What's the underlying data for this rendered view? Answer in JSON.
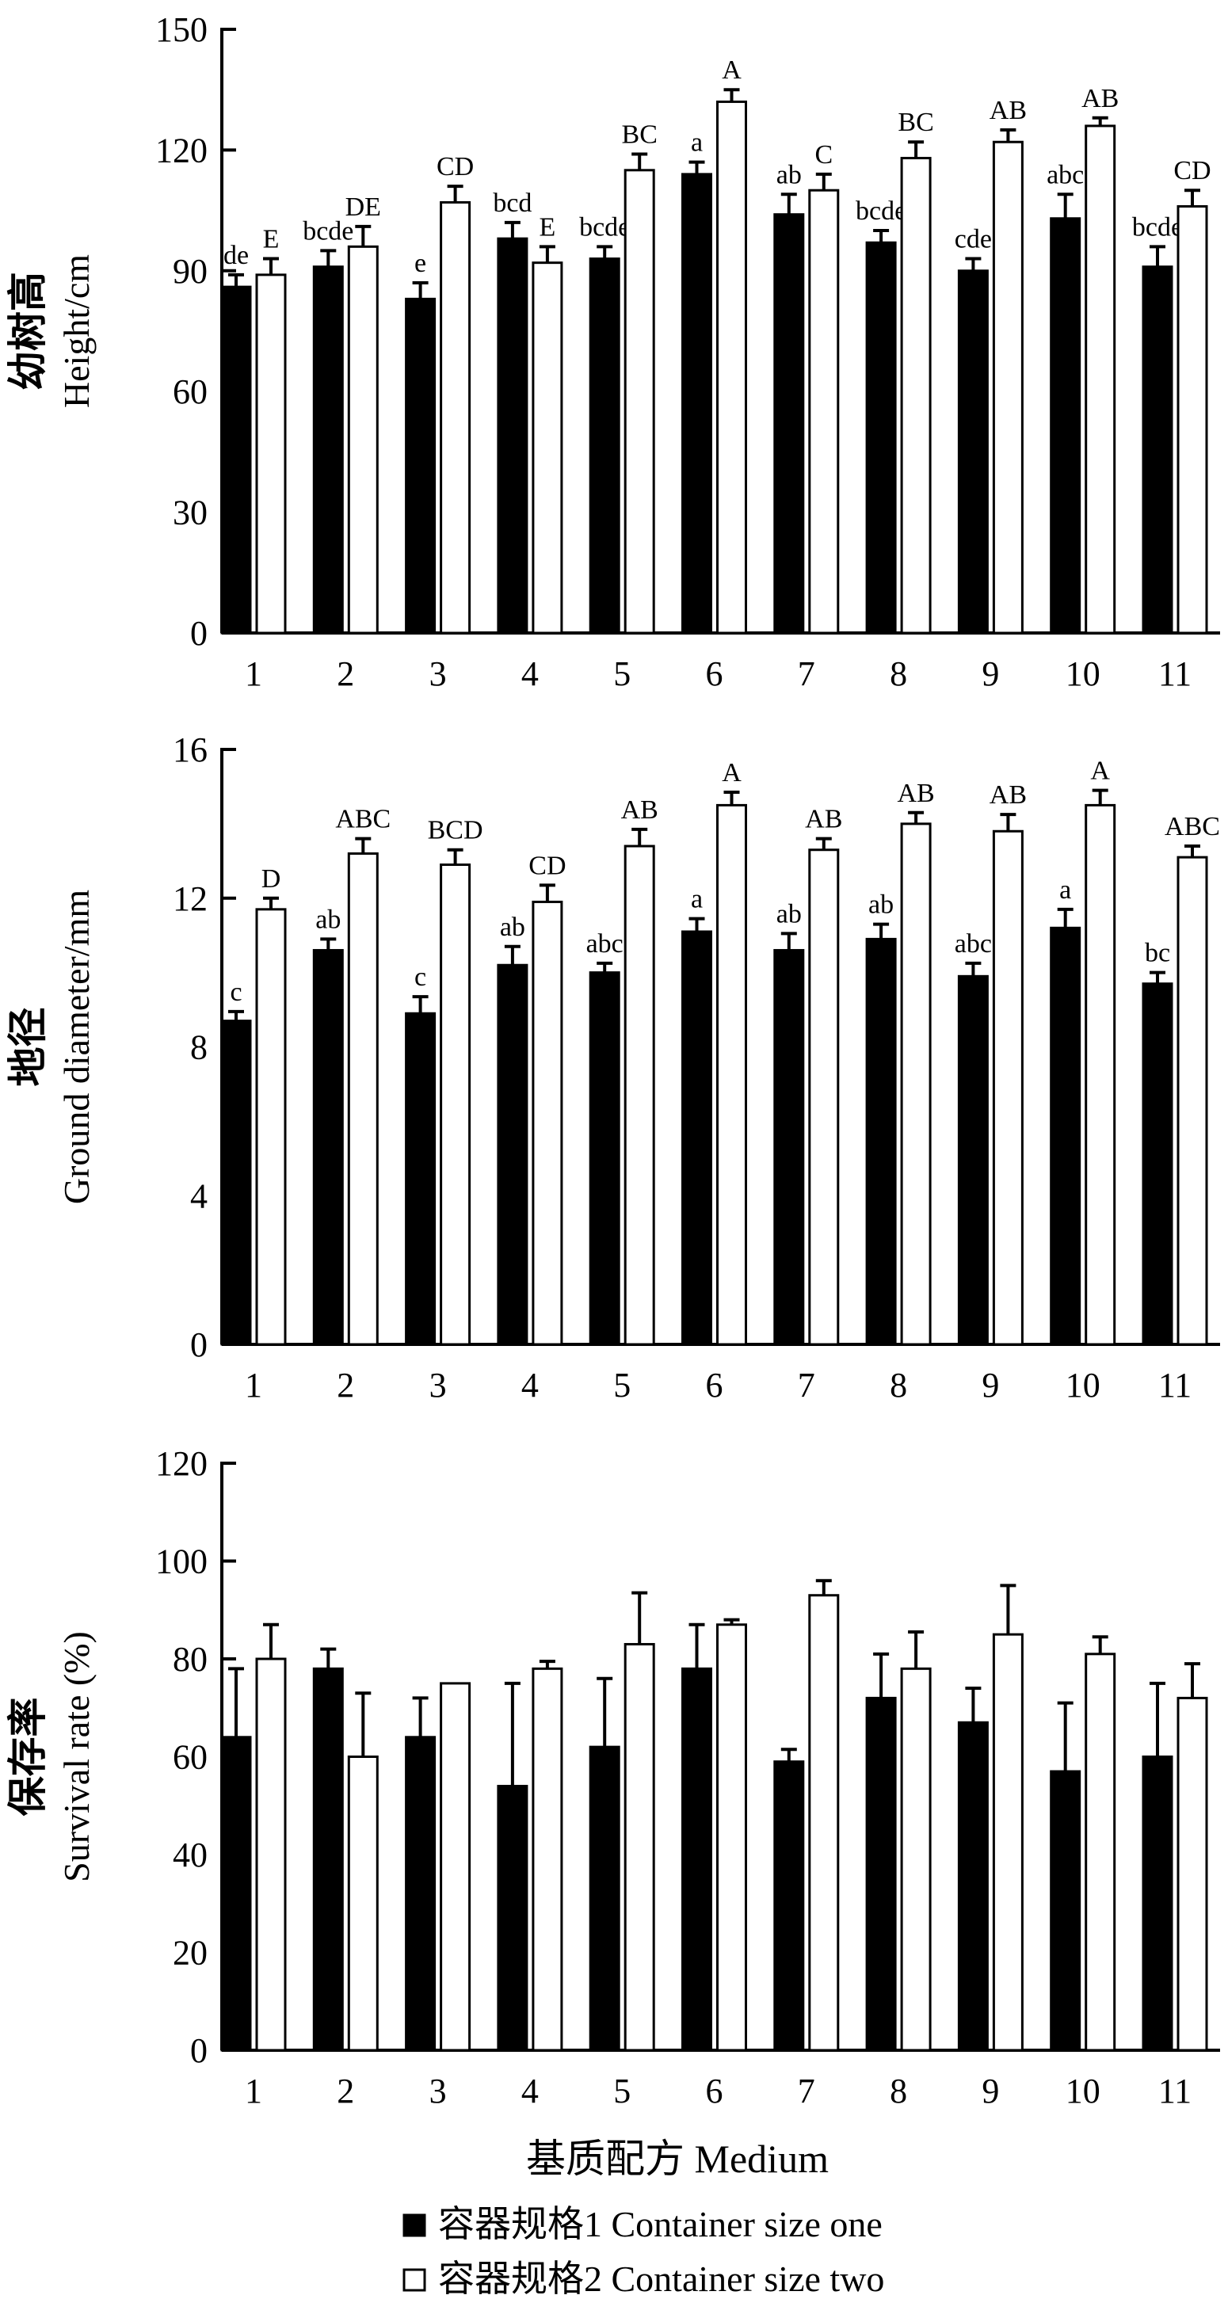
{
  "chart_data": [
    {
      "type": "bar",
      "ylabel_cn": "幼树高",
      "ylabel_en": "Height/cm",
      "ylim": [
        0,
        150
      ],
      "yticks": [
        0,
        30,
        60,
        90,
        120,
        150
      ],
      "categories": [
        "1",
        "2",
        "3",
        "4",
        "5",
        "6",
        "7",
        "8",
        "9",
        "10",
        "11"
      ],
      "series": [
        {
          "name": "容器规格1 Container size one",
          "fill": "#000000",
          "values": [
            86,
            91,
            83,
            98,
            93,
            114,
            104,
            97,
            90,
            103,
            91
          ],
          "errors": [
            3,
            4,
            4,
            4,
            3,
            3,
            5,
            3,
            3,
            6,
            5
          ],
          "letters": [
            "de",
            "bcde",
            "e",
            "bcd",
            "bcde",
            "a",
            "ab",
            "bcde",
            "cde",
            "abc",
            "bcde"
          ]
        },
        {
          "name": "容器规格2 Container size two",
          "fill": "#ffffff",
          "values": [
            89,
            96,
            107,
            92,
            115,
            132,
            110,
            118,
            122,
            126,
            106
          ],
          "errors": [
            4,
            5,
            4,
            4,
            4,
            3,
            4,
            4,
            3,
            2,
            4
          ],
          "letters": [
            "E",
            "DE",
            "CD",
            "E",
            "BC",
            "A",
            "C",
            "BC",
            "AB",
            "AB",
            "CD"
          ]
        }
      ]
    },
    {
      "type": "bar",
      "ylabel_cn": "地径",
      "ylabel_en": "Ground diameter/mm",
      "ylim": [
        0,
        16
      ],
      "yticks": [
        0,
        4,
        8,
        12,
        16
      ],
      "categories": [
        "1",
        "2",
        "3",
        "4",
        "5",
        "6",
        "7",
        "8",
        "9",
        "10",
        "11"
      ],
      "series": [
        {
          "name": "容器规格1 Container size one",
          "fill": "#000000",
          "values": [
            8.7,
            10.6,
            8.9,
            10.2,
            10.0,
            11.1,
            10.6,
            10.9,
            9.9,
            11.2,
            9.7
          ],
          "errors": [
            0.25,
            0.3,
            0.45,
            0.5,
            0.25,
            0.35,
            0.45,
            0.4,
            0.35,
            0.5,
            0.3
          ],
          "letters": [
            "c",
            "ab",
            "c",
            "ab",
            "abc",
            "a",
            "ab",
            "ab",
            "abc",
            "a",
            "bc"
          ]
        },
        {
          "name": "容器规格2 Container size two",
          "fill": "#ffffff",
          "values": [
            11.7,
            13.2,
            12.9,
            11.9,
            13.4,
            14.5,
            13.3,
            14.0,
            13.8,
            14.5,
            13.1
          ],
          "errors": [
            0.3,
            0.4,
            0.4,
            0.45,
            0.45,
            0.35,
            0.3,
            0.3,
            0.45,
            0.4,
            0.3
          ],
          "letters": [
            "D",
            "ABC",
            "BCD",
            "CD",
            "AB",
            "A",
            "AB",
            "AB",
            "AB",
            "A",
            "ABC"
          ]
        }
      ]
    },
    {
      "type": "bar",
      "ylabel_cn": "保存率",
      "ylabel_en": "Survival rate (%)",
      "ylim": [
        0,
        120
      ],
      "yticks": [
        0,
        20,
        40,
        60,
        80,
        100,
        120
      ],
      "xlabel": "基质配方 Medium",
      "categories": [
        "1",
        "2",
        "3",
        "4",
        "5",
        "6",
        "7",
        "8",
        "9",
        "10",
        "11"
      ],
      "series": [
        {
          "name": "容器规格1 Container size one",
          "fill": "#000000",
          "values": [
            64,
            78,
            64,
            54,
            62,
            78,
            59,
            72,
            67,
            57,
            60
          ],
          "errors": [
            14,
            4,
            8,
            21,
            14,
            9,
            2.5,
            9,
            7,
            14,
            15
          ],
          "letters": []
        },
        {
          "name": "容器规格2 Container size two",
          "fill": "#ffffff",
          "values": [
            80,
            60,
            75,
            78,
            83,
            87,
            93,
            78,
            85,
            81,
            72
          ],
          "errors": [
            7,
            13,
            0,
            1.5,
            10.5,
            1,
            3,
            7.5,
            10,
            3.5,
            7
          ],
          "letters": []
        }
      ]
    }
  ],
  "legend": [
    {
      "label": "容器规格1 Container size one",
      "fill": "#000000"
    },
    {
      "label": "容器规格2 Container size two",
      "fill": "#ffffff"
    }
  ]
}
